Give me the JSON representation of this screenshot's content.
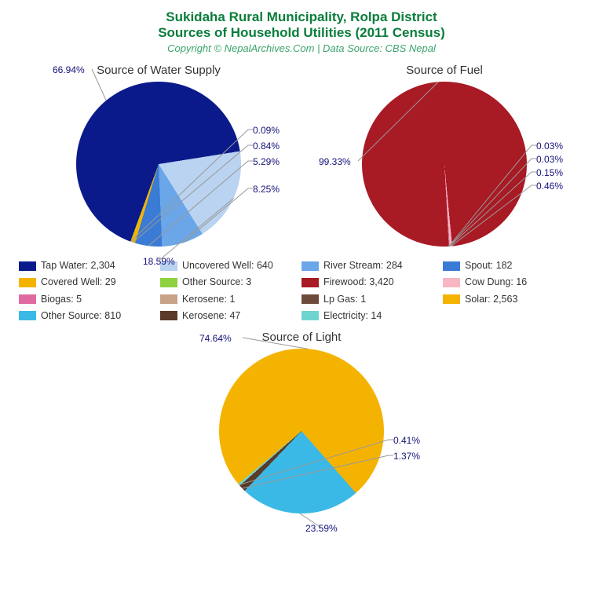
{
  "title_line1": "Sukidaha Rural Municipality, Rolpa District",
  "title_line2": "Sources of Household Utilities (2011 Census)",
  "title_color": "#0a7d3c",
  "subtitle": "Copyright © NepalArchives.Com | Data Source: CBS Nepal",
  "subtitle_color": "#3aa56a",
  "label_color": "#14117a",
  "background": "#ffffff",
  "pie_radius": 105,
  "water": {
    "title": "Source of Water Supply",
    "slices": [
      {
        "name": "Tap Water",
        "value": 2304,
        "pct": "66.94%",
        "color": "#0b1a8a"
      },
      {
        "name": "Uncovered Well",
        "value": 640,
        "pct": "18.59%",
        "color": "#b9d3f0"
      },
      {
        "name": "River Stream",
        "value": 284,
        "pct": "8.25%",
        "color": "#6aa6e8"
      },
      {
        "name": "Spout",
        "value": 182,
        "pct": "5.29%",
        "color": "#3a7bd5"
      },
      {
        "name": "Covered Well",
        "value": 29,
        "pct": "0.84%",
        "color": "#f5b301"
      },
      {
        "name": "Other Source",
        "value": 3,
        "pct": "0.09%",
        "color": "#8fd13f"
      }
    ]
  },
  "fuel": {
    "title": "Source of Fuel",
    "slices": [
      {
        "name": "Firewood",
        "value": 3420,
        "pct": "99.33%",
        "color": "#a81a24"
      },
      {
        "name": "Cow Dung",
        "value": 16,
        "pct": "0.46%",
        "color": "#f7b6c2"
      },
      {
        "name": "Biogas",
        "value": 5,
        "pct": "0.15%",
        "color": "#e06aa0"
      },
      {
        "name": "Kerosene",
        "value": 1,
        "pct": "0.03%",
        "color": "#c8a187"
      },
      {
        "name": "Lp Gas",
        "value": 1,
        "pct": "0.03%",
        "color": "#6d4a3a"
      }
    ]
  },
  "light": {
    "title": "Source of Light",
    "slices": [
      {
        "name": "Solar",
        "value": 2563,
        "pct": "74.64%",
        "color": "#f5b301"
      },
      {
        "name": "Other Source",
        "value": 810,
        "pct": "23.59%",
        "color": "#3bb9e6"
      },
      {
        "name": "Kerosene",
        "value": 47,
        "pct": "1.37%",
        "color": "#5a3a28"
      },
      {
        "name": "Electricity",
        "value": 14,
        "pct": "0.41%",
        "color": "#6fd4d0"
      }
    ]
  },
  "legend": [
    {
      "label": "Tap Water: 2,304",
      "color": "#0b1a8a"
    },
    {
      "label": "Uncovered Well: 640",
      "color": "#b9d3f0"
    },
    {
      "label": "River Stream: 284",
      "color": "#6aa6e8"
    },
    {
      "label": "Spout: 182",
      "color": "#3a7bd5"
    },
    {
      "label": "Covered Well: 29",
      "color": "#f5b301"
    },
    {
      "label": "Other Source: 3",
      "color": "#8fd13f"
    },
    {
      "label": "Firewood: 3,420",
      "color": "#a81a24"
    },
    {
      "label": "Cow Dung: 16",
      "color": "#f7b6c2"
    },
    {
      "label": "Biogas: 5",
      "color": "#e06aa0"
    },
    {
      "label": "Kerosene: 1",
      "color": "#c8a187"
    },
    {
      "label": "Lp Gas: 1",
      "color": "#6d4a3a"
    },
    {
      "label": "Solar: 2,563",
      "color": "#f5b301"
    },
    {
      "label": "Other Source: 810",
      "color": "#3bb9e6"
    },
    {
      "label": "Kerosene: 47",
      "color": "#5a3a28"
    },
    {
      "label": "Electricity: 14",
      "color": "#6fd4d0"
    }
  ]
}
